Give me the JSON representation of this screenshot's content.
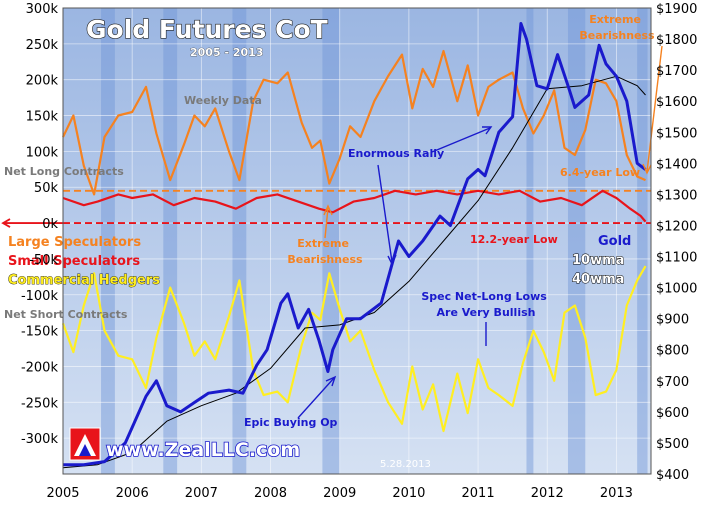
{
  "chart_data": {
    "type": "line",
    "title": "Gold Futures CoT",
    "subtitle": "2005 - 2013",
    "x_ticks": [
      "2005",
      "2006",
      "2007",
      "2008",
      "2009",
      "2010",
      "2011",
      "2012",
      "2013"
    ],
    "x_range": [
      2005.0,
      2013.5
    ],
    "y_left": {
      "range": [
        -350000,
        300000
      ],
      "ticks": [
        300000,
        250000,
        200000,
        150000,
        100000,
        50000,
        0,
        -50000,
        -100000,
        -150000,
        -200000,
        -250000,
        -300000
      ],
      "tick_labels": [
        "300k",
        "250k",
        "200k",
        "150k",
        "100k",
        "50k",
        "0k",
        "-50k",
        "-100k",
        "-150k",
        "-200k",
        "-250k",
        "-300k"
      ]
    },
    "y_right": {
      "range": [
        400,
        1900
      ],
      "ticks": [
        1900,
        1800,
        1700,
        1600,
        1500,
        1400,
        1300,
        1200,
        1100,
        1000,
        900,
        800,
        700,
        600,
        500,
        400
      ],
      "tick_labels": [
        "$1900",
        "$1800",
        "$1700",
        "$1600",
        "$1500",
        "$1400",
        "$1300",
        "$1200",
        "$1100",
        "$1000",
        "$900",
        "$800",
        "$700",
        "$600",
        "$500",
        "$400"
      ]
    },
    "series": [
      {
        "name": "Large Speculators",
        "axis": "left",
        "color": "#f58220",
        "points": [
          [
            2005.0,
            120000
          ],
          [
            2005.15,
            150000
          ],
          [
            2005.3,
            80000
          ],
          [
            2005.45,
            40000
          ],
          [
            2005.6,
            120000
          ],
          [
            2005.8,
            150000
          ],
          [
            2006.0,
            155000
          ],
          [
            2006.2,
            190000
          ],
          [
            2006.35,
            125000
          ],
          [
            2006.55,
            60000
          ],
          [
            2006.75,
            110000
          ],
          [
            2006.9,
            150000
          ],
          [
            2007.05,
            135000
          ],
          [
            2007.2,
            160000
          ],
          [
            2007.4,
            100000
          ],
          [
            2007.55,
            60000
          ],
          [
            2007.75,
            170000
          ],
          [
            2007.9,
            200000
          ],
          [
            2008.1,
            195000
          ],
          [
            2008.25,
            210000
          ],
          [
            2008.45,
            140000
          ],
          [
            2008.6,
            105000
          ],
          [
            2008.72,
            115000
          ],
          [
            2008.85,
            55000
          ],
          [
            2009.0,
            90000
          ],
          [
            2009.15,
            135000
          ],
          [
            2009.3,
            120000
          ],
          [
            2009.5,
            170000
          ],
          [
            2009.7,
            205000
          ],
          [
            2009.9,
            235000
          ],
          [
            2010.05,
            160000
          ],
          [
            2010.2,
            215000
          ],
          [
            2010.35,
            190000
          ],
          [
            2010.5,
            240000
          ],
          [
            2010.7,
            170000
          ],
          [
            2010.85,
            220000
          ],
          [
            2011.0,
            150000
          ],
          [
            2011.15,
            190000
          ],
          [
            2011.3,
            200000
          ],
          [
            2011.5,
            210000
          ],
          [
            2011.65,
            160000
          ],
          [
            2011.8,
            125000
          ],
          [
            2011.95,
            150000
          ],
          [
            2012.1,
            185000
          ],
          [
            2012.25,
            105000
          ],
          [
            2012.4,
            95000
          ],
          [
            2012.55,
            130000
          ],
          [
            2012.7,
            200000
          ],
          [
            2012.85,
            195000
          ],
          [
            2013.0,
            170000
          ],
          [
            2013.15,
            95000
          ],
          [
            2013.3,
            65000
          ],
          [
            2013.42,
            60000
          ]
        ]
      },
      {
        "name": "Small Speculators",
        "axis": "left",
        "color": "#e8141b",
        "points": [
          [
            2005.0,
            35000
          ],
          [
            2005.3,
            25000
          ],
          [
            2005.5,
            30000
          ],
          [
            2005.8,
            40000
          ],
          [
            2006.0,
            35000
          ],
          [
            2006.3,
            40000
          ],
          [
            2006.6,
            25000
          ],
          [
            2006.9,
            35000
          ],
          [
            2007.2,
            30000
          ],
          [
            2007.5,
            20000
          ],
          [
            2007.8,
            35000
          ],
          [
            2008.1,
            40000
          ],
          [
            2008.4,
            30000
          ],
          [
            2008.7,
            20000
          ],
          [
            2008.9,
            15000
          ],
          [
            2009.2,
            30000
          ],
          [
            2009.5,
            35000
          ],
          [
            2009.8,
            45000
          ],
          [
            2010.1,
            40000
          ],
          [
            2010.4,
            45000
          ],
          [
            2010.7,
            40000
          ],
          [
            2011.0,
            45000
          ],
          [
            2011.3,
            40000
          ],
          [
            2011.6,
            45000
          ],
          [
            2011.9,
            30000
          ],
          [
            2012.2,
            35000
          ],
          [
            2012.5,
            25000
          ],
          [
            2012.8,
            45000
          ],
          [
            2013.0,
            35000
          ],
          [
            2013.2,
            20000
          ],
          [
            2013.35,
            10000
          ],
          [
            2013.42,
            2000
          ]
        ]
      },
      {
        "name": "Commercial Hedgers",
        "axis": "left",
        "color": "#ffee22",
        "points": [
          [
            2005.0,
            -140000
          ],
          [
            2005.15,
            -180000
          ],
          [
            2005.3,
            -115000
          ],
          [
            2005.45,
            -70000
          ],
          [
            2005.6,
            -150000
          ],
          [
            2005.8,
            -185000
          ],
          [
            2006.0,
            -190000
          ],
          [
            2006.2,
            -230000
          ],
          [
            2006.35,
            -160000
          ],
          [
            2006.55,
            -90000
          ],
          [
            2006.75,
            -140000
          ],
          [
            2006.9,
            -185000
          ],
          [
            2007.05,
            -165000
          ],
          [
            2007.2,
            -190000
          ],
          [
            2007.4,
            -130000
          ],
          [
            2007.55,
            -80000
          ],
          [
            2007.75,
            -205000
          ],
          [
            2007.9,
            -240000
          ],
          [
            2008.1,
            -235000
          ],
          [
            2008.25,
            -250000
          ],
          [
            2008.45,
            -170000
          ],
          [
            2008.6,
            -125000
          ],
          [
            2008.72,
            -135000
          ],
          [
            2008.85,
            -70000
          ],
          [
            2009.0,
            -120000
          ],
          [
            2009.15,
            -165000
          ],
          [
            2009.3,
            -150000
          ],
          [
            2009.5,
            -205000
          ],
          [
            2009.7,
            -250000
          ],
          [
            2009.9,
            -280000
          ],
          [
            2010.05,
            -200000
          ],
          [
            2010.2,
            -260000
          ],
          [
            2010.35,
            -225000
          ],
          [
            2010.5,
            -290000
          ],
          [
            2010.7,
            -210000
          ],
          [
            2010.85,
            -265000
          ],
          [
            2011.0,
            -190000
          ],
          [
            2011.15,
            -230000
          ],
          [
            2011.3,
            -240000
          ],
          [
            2011.5,
            -255000
          ],
          [
            2011.65,
            -195000
          ],
          [
            2011.8,
            -150000
          ],
          [
            2011.95,
            -180000
          ],
          [
            2012.1,
            -220000
          ],
          [
            2012.25,
            -125000
          ],
          [
            2012.4,
            -115000
          ],
          [
            2012.55,
            -160000
          ],
          [
            2012.7,
            -240000
          ],
          [
            2012.85,
            -235000
          ],
          [
            2013.0,
            -205000
          ],
          [
            2013.15,
            -115000
          ],
          [
            2013.3,
            -80000
          ],
          [
            2013.42,
            -60000
          ]
        ]
      },
      {
        "name": "Gold",
        "axis": "right",
        "color": "#1a1acc",
        "points": [
          [
            2005.0,
            430
          ],
          [
            2005.3,
            430
          ],
          [
            2005.6,
            440
          ],
          [
            2005.9,
            500
          ],
          [
            2006.0,
            550
          ],
          [
            2006.2,
            650
          ],
          [
            2006.35,
            700
          ],
          [
            2006.5,
            620
          ],
          [
            2006.7,
            600
          ],
          [
            2006.9,
            630
          ],
          [
            2007.1,
            660
          ],
          [
            2007.4,
            670
          ],
          [
            2007.6,
            660
          ],
          [
            2007.8,
            750
          ],
          [
            2007.95,
            800
          ],
          [
            2008.15,
            950
          ],
          [
            2008.25,
            980
          ],
          [
            2008.4,
            870
          ],
          [
            2008.55,
            930
          ],
          [
            2008.7,
            830
          ],
          [
            2008.83,
            730
          ],
          [
            2008.9,
            800
          ],
          [
            2009.1,
            900
          ],
          [
            2009.3,
            900
          ],
          [
            2009.6,
            950
          ],
          [
            2009.85,
            1150
          ],
          [
            2010.0,
            1100
          ],
          [
            2010.2,
            1150
          ],
          [
            2010.45,
            1230
          ],
          [
            2010.6,
            1200
          ],
          [
            2010.85,
            1350
          ],
          [
            2011.0,
            1380
          ],
          [
            2011.1,
            1360
          ],
          [
            2011.3,
            1500
          ],
          [
            2011.5,
            1550
          ],
          [
            2011.62,
            1850
          ],
          [
            2011.7,
            1800
          ],
          [
            2011.85,
            1650
          ],
          [
            2012.0,
            1640
          ],
          [
            2012.15,
            1750
          ],
          [
            2012.3,
            1650
          ],
          [
            2012.4,
            1580
          ],
          [
            2012.6,
            1620
          ],
          [
            2012.75,
            1780
          ],
          [
            2012.85,
            1720
          ],
          [
            2013.0,
            1680
          ],
          [
            2013.15,
            1600
          ],
          [
            2013.3,
            1400
          ],
          [
            2013.42,
            1380
          ]
        ]
      },
      {
        "name": "40wma",
        "axis": "right",
        "color": "#000000",
        "points": [
          [
            2005.0,
            420
          ],
          [
            2005.5,
            430
          ],
          [
            2006.0,
            470
          ],
          [
            2006.5,
            570
          ],
          [
            2007.0,
            620
          ],
          [
            2007.5,
            660
          ],
          [
            2008.0,
            740
          ],
          [
            2008.5,
            870
          ],
          [
            2009.0,
            880
          ],
          [
            2009.5,
            920
          ],
          [
            2010.0,
            1020
          ],
          [
            2010.5,
            1150
          ],
          [
            2011.0,
            1280
          ],
          [
            2011.5,
            1450
          ],
          [
            2012.0,
            1640
          ],
          [
            2012.5,
            1650
          ],
          [
            2013.0,
            1680
          ],
          [
            2013.3,
            1650
          ],
          [
            2013.42,
            1620
          ]
        ]
      }
    ],
    "reference_lines": [
      {
        "value": 45000,
        "axis": "left",
        "color": "#f58220",
        "style": "dashed"
      },
      {
        "value": 0,
        "axis": "left",
        "color": "#e8141b",
        "style": "dashed"
      }
    ],
    "shaded_bands_x": [
      [
        2005.55,
        2005.75
      ],
      [
        2006.45,
        2006.65
      ],
      [
        2007.45,
        2007.65
      ],
      [
        2008.75,
        2009.0
      ],
      [
        2011.7,
        2011.8
      ],
      [
        2012.3,
        2012.55
      ],
      [
        2013.3,
        2013.45
      ]
    ],
    "grid": true,
    "legend": [
      {
        "label": "Large Speculators",
        "color": "#f58220"
      },
      {
        "label": "Small Speculators",
        "color": "#e8141b"
      },
      {
        "label": "Commercial Hedgers",
        "color": "#ffee22"
      },
      {
        "label": "Gold",
        "color": "#1a1acc"
      },
      {
        "label": "10wma",
        "color": "#ffffff"
      },
      {
        "label": "40wma",
        "color": "#ffffff"
      }
    ],
    "annotations": {
      "weekly_data": "Weekly Data",
      "net_long": "Net Long Contracts",
      "net_short": "Net Short Contracts",
      "extreme_bearishness_top": "Extreme\nBearishness",
      "extreme_bearishness_mid": "Extreme\nBearishness",
      "enormous_rally": "Enormous Rally",
      "six_year_low": "6.4-year Low",
      "twelve_year_low": "12.2-year Low",
      "spec_net_long": "Spec Net-Long Lows\nAre Very Bullish",
      "epic_buying": "Epic Buying Op",
      "website": "www.ZealLLC.com",
      "date": "5.28.2013"
    }
  }
}
